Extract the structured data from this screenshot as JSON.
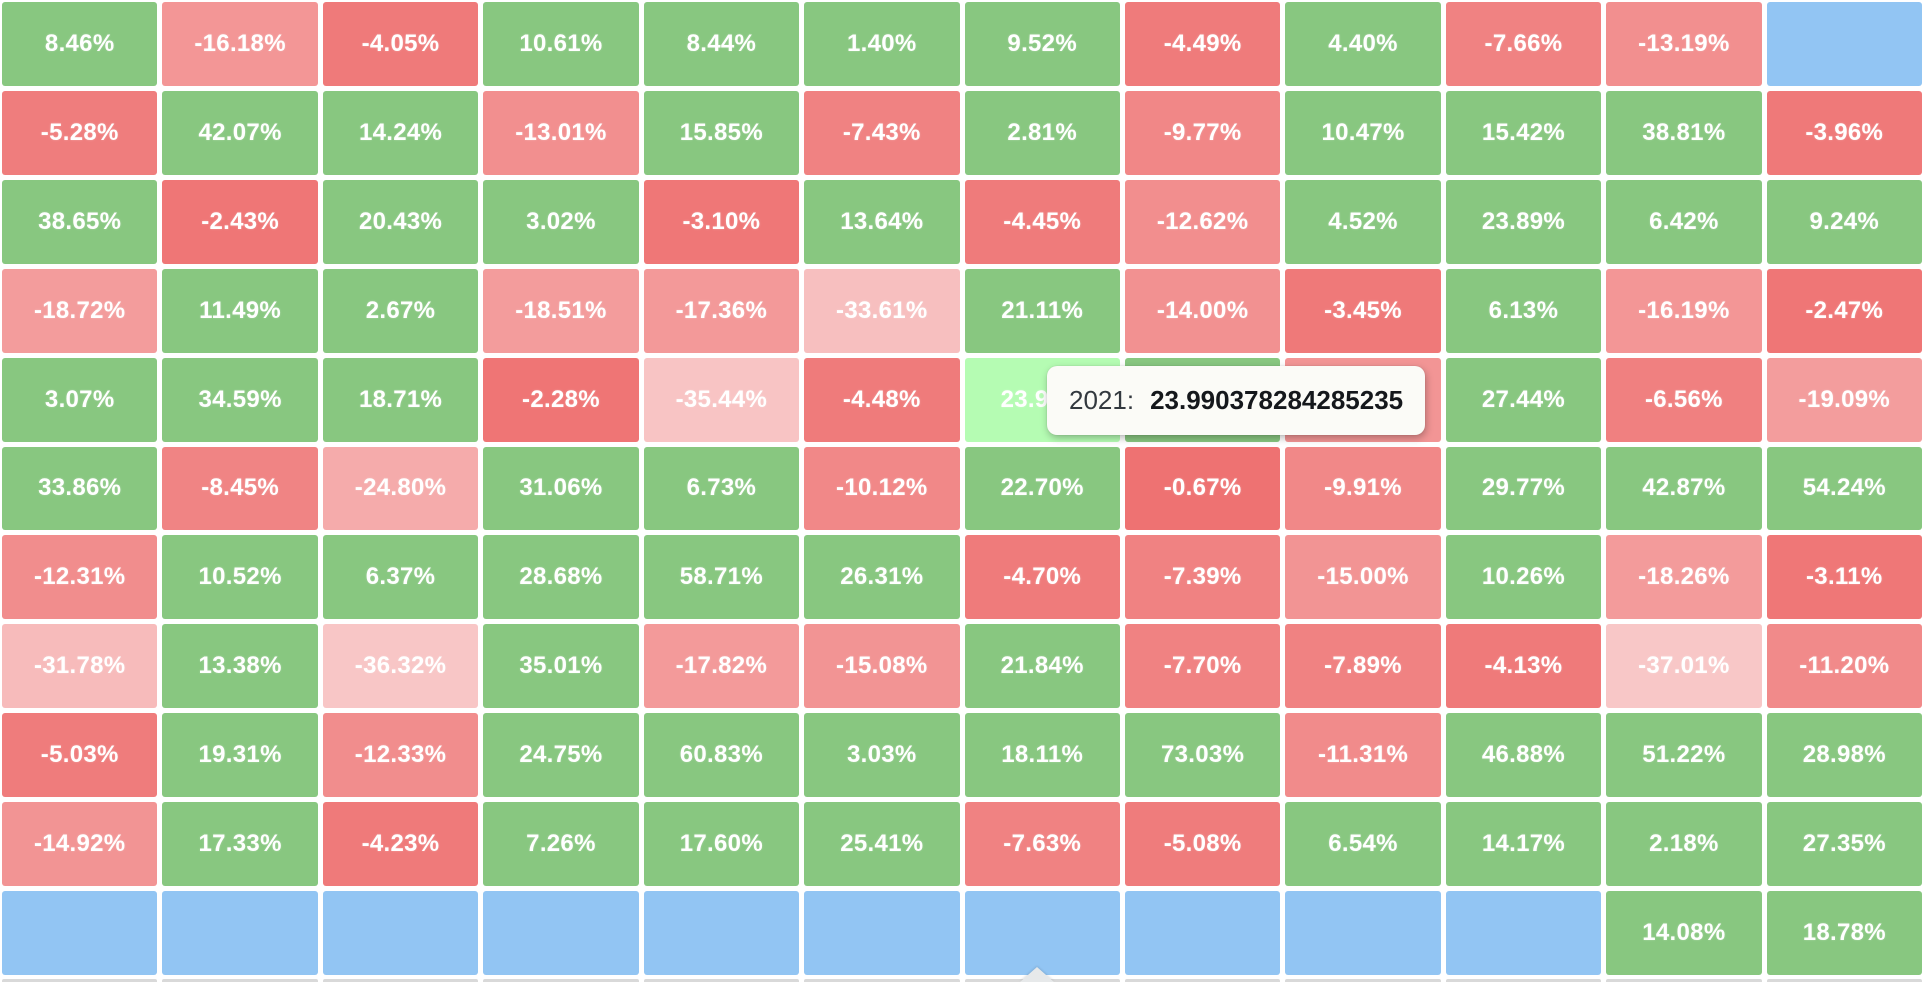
{
  "colors": {
    "positive_green": "#88c780",
    "negative_red_base": "#eb5757",
    "empty_blue": "#92c5f3",
    "hover_highlight_green": "#b5fcb3",
    "tooltip_bg": "#fbfbf7",
    "tooltip_label_text": "#33393f",
    "tooltip_value_text": "#15181c",
    "cell_text": "#ffffff",
    "peek_row_gray": "#d9d9d9",
    "arrow_gray": "#e7e9ea"
  },
  "tooltip": {
    "year_label": "2021:",
    "value": "23.990378284285235"
  },
  "chart_data": {
    "type": "heatmap",
    "title": "",
    "description": "Grid of percentage returns: green = positive, red = negative (paler pink = larger loss), blue = empty/no data. One cell is hovered (bright green) with a tooltip showing its exact 2021 value.",
    "units": "%",
    "grid_size": {
      "columns": 12,
      "rows": 11
    },
    "hovered_cell": {
      "row_index": 4,
      "col_index": 6,
      "year": "2021",
      "exact_value": 23.990378284285235,
      "displayed_text": "23.99%"
    },
    "legend_note": "covered cells are hidden beneath the tooltip overlay",
    "rows": [
      [
        8.46,
        -16.18,
        -4.05,
        10.61,
        8.44,
        1.4,
        9.52,
        -4.49,
        4.4,
        -7.66,
        -13.19,
        "blue"
      ],
      [
        -5.28,
        42.07,
        14.24,
        -13.01,
        15.85,
        -7.43,
        2.81,
        -9.77,
        10.47,
        15.42,
        38.81,
        -3.96
      ],
      [
        38.65,
        -2.43,
        20.43,
        3.02,
        -3.1,
        13.64,
        -4.45,
        -12.62,
        4.52,
        23.89,
        6.42,
        9.24
      ],
      [
        -18.72,
        11.49,
        2.67,
        -18.51,
        -17.36,
        -33.61,
        21.11,
        -14.0,
        -3.45,
        6.13,
        -16.19,
        -2.47
      ],
      [
        3.07,
        34.59,
        18.71,
        -2.28,
        -35.44,
        -4.48,
        {
          "kind": "hover",
          "value": 23.99
        },
        {
          "kind": "pos-covered"
        },
        {
          "kind": "neg-covered"
        },
        27.44,
        -6.56,
        -19.09
      ],
      [
        33.86,
        -8.45,
        -24.8,
        31.06,
        6.73,
        -10.12,
        22.7,
        -0.67,
        -9.91,
        29.77,
        42.87,
        54.24
      ],
      [
        -12.31,
        10.52,
        6.37,
        28.68,
        58.71,
        26.31,
        -4.7,
        -7.39,
        -15.0,
        10.26,
        -18.26,
        -3.11
      ],
      [
        -31.78,
        13.38,
        -36.32,
        35.01,
        -17.82,
        -15.08,
        21.84,
        -7.7,
        -7.89,
        -4.13,
        -37.01,
        -11.2
      ],
      [
        -5.03,
        19.31,
        -12.33,
        24.75,
        60.83,
        3.03,
        18.11,
        73.03,
        -11.31,
        46.88,
        51.22,
        28.98
      ],
      [
        -14.92,
        17.33,
        -4.23,
        7.26,
        17.6,
        25.41,
        -7.63,
        -5.08,
        6.54,
        14.17,
        2.18,
        27.35
      ],
      [
        "blue",
        "blue",
        "blue",
        "blue",
        "blue",
        "blue",
        "blue",
        "blue",
        "blue",
        "blue",
        14.08,
        18.78
      ]
    ]
  }
}
